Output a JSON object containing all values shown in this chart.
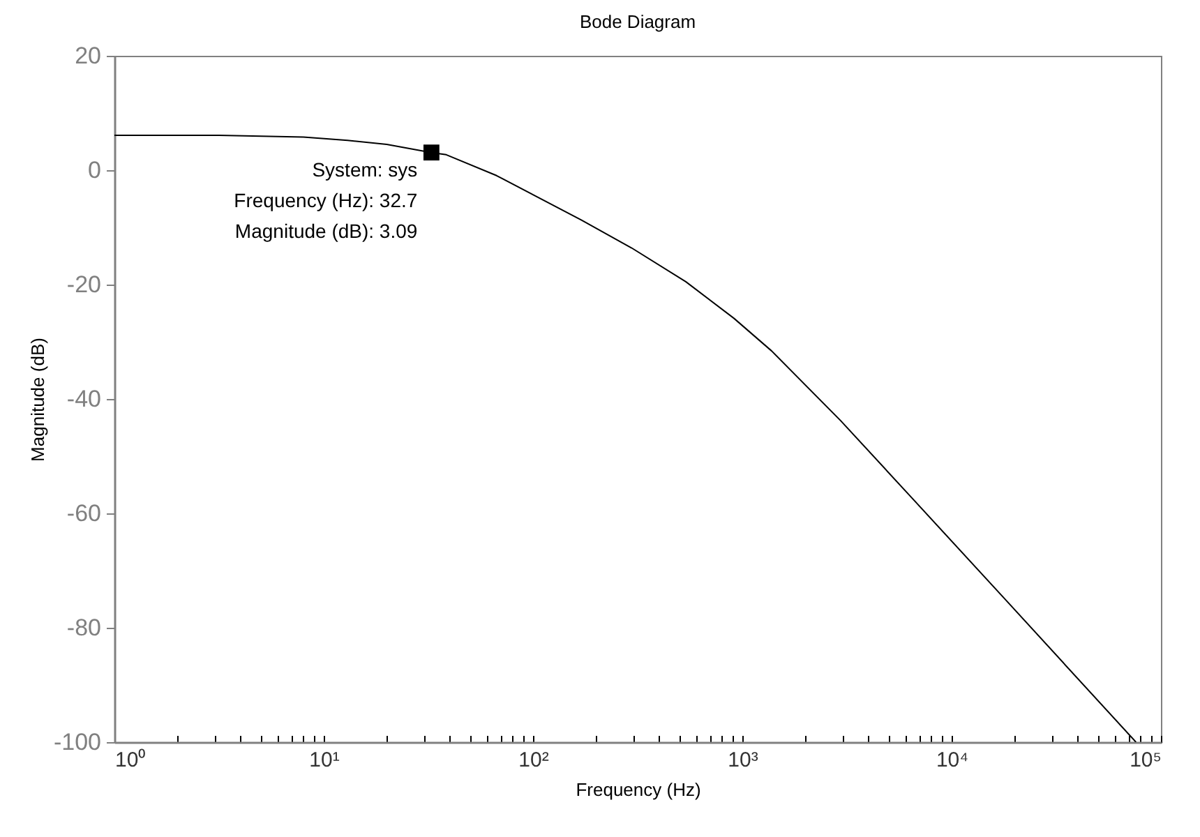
{
  "chart_data": {
    "type": "line",
    "title": "Bode Diagram",
    "xlabel": "Frequency  (Hz)",
    "ylabel": "Magnitude (dB)",
    "log": "x",
    "grid": false,
    "legend": false,
    "x": [
      1,
      3.16,
      8,
      13,
      20,
      32.7,
      38.5,
      67,
      170,
      296,
      537,
      912,
      1380,
      2950,
      6460,
      18200,
      76000
    ],
    "series": [
      {
        "color": "#000000",
        "values": [
          6.1,
          6.1,
          5.8,
          5.2,
          4.5,
          3.09,
          2.7,
          -0.95,
          -8.7,
          -13.6,
          -19.5,
          -25.9,
          -31.6,
          -43.8,
          -57.3,
          -75.2,
          -100
        ]
      }
    ],
    "xlim": [
      1,
      100000
    ],
    "ylim": [
      -100,
      20
    ],
    "xticks": [
      {
        "value": 1,
        "label": "10⁰"
      },
      {
        "value": 2,
        "label": null
      },
      {
        "value": 3,
        "label": null
      },
      {
        "value": 4,
        "label": null
      },
      {
        "value": 5,
        "label": null
      },
      {
        "value": 6,
        "label": null
      },
      {
        "value": 7,
        "label": null
      },
      {
        "value": 8,
        "label": null
      },
      {
        "value": 9,
        "label": null
      },
      {
        "value": 10,
        "label": "10¹"
      },
      {
        "value": 20,
        "label": null
      },
      {
        "value": 30,
        "label": null
      },
      {
        "value": 40,
        "label": null
      },
      {
        "value": 50,
        "label": null
      },
      {
        "value": 60,
        "label": null
      },
      {
        "value": 70,
        "label": null
      },
      {
        "value": 80,
        "label": null
      },
      {
        "value": 90,
        "label": null
      },
      {
        "value": 100,
        "label": "10²"
      },
      {
        "value": 200,
        "label": null
      },
      {
        "value": 300,
        "label": null
      },
      {
        "value": 400,
        "label": null
      },
      {
        "value": 500,
        "label": null
      },
      {
        "value": 600,
        "label": null
      },
      {
        "value": 700,
        "label": null
      },
      {
        "value": 800,
        "label": null
      },
      {
        "value": 900,
        "label": null
      },
      {
        "value": 1000,
        "label": "10³"
      },
      {
        "value": 2000,
        "label": null
      },
      {
        "value": 3000,
        "label": null
      },
      {
        "value": 4000,
        "label": null
      },
      {
        "value": 5000,
        "label": null
      },
      {
        "value": 6000,
        "label": null
      },
      {
        "value": 7000,
        "label": null
      },
      {
        "value": 8000,
        "label": null
      },
      {
        "value": 9000,
        "label": null
      },
      {
        "value": 10000,
        "label": "10⁴"
      },
      {
        "value": 20000,
        "label": null
      },
      {
        "value": 30000,
        "label": null
      },
      {
        "value": 40000,
        "label": null
      },
      {
        "value": 50000,
        "label": null
      },
      {
        "value": 60000,
        "label": null
      },
      {
        "value": 70000,
        "label": null
      },
      {
        "value": 80000,
        "label": null
      },
      {
        "value": 90000,
        "label": null
      },
      {
        "value": 100000,
        "label": "10⁵"
      }
    ],
    "yticks": [
      -100,
      -80,
      -60,
      -40,
      -20,
      0,
      20
    ],
    "annotations": [
      {
        "text": "System: sys\nFrequency (Hz): 32.7\nMagnitude (dB): 3.09",
        "x": 32.7,
        "y": 3.09
      }
    ]
  }
}
